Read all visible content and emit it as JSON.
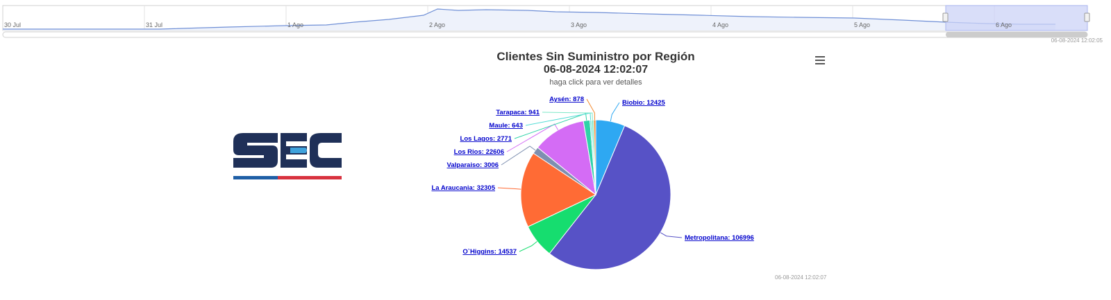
{
  "navigator": {
    "ticks": [
      "30 Jul",
      "31 Jul",
      "1 Ago",
      "2 Ago",
      "3 Ago",
      "4 Ago",
      "5 Ago",
      "6 Ago"
    ],
    "timestamp": "06-08-2024 12:02:05",
    "colors": {
      "line": "#6f8fd6",
      "fill": "#eef2fb",
      "selection": "#ccd3f7"
    }
  },
  "logo": {
    "text": "SEC",
    "colors": {
      "letters": "#1f3058",
      "accent": "#3fa2dc",
      "stripe_blue": "#1f5fa6",
      "stripe_red": "#d8323f"
    }
  },
  "chart": {
    "title": "Clientes Sin Suministro por Región",
    "datetime": "06-08-2024 12:02:07",
    "subtitle": "haga click para ver detalles",
    "footer": "06-08-2024 12:02:07",
    "menu_icon": "hamburger-menu-icon"
  },
  "chart_data": {
    "type": "pie",
    "title": "Clientes Sin Suministro por Región",
    "series": [
      {
        "name": "",
        "slices": [
          {
            "label": "Biobio",
            "value": 12425,
            "text": "Biobio: 12425",
            "color": "#2ea8f2"
          },
          {
            "label": "Metropolitana",
            "value": 106996,
            "text": "Metropolitana: 106996",
            "color": "#5752c6"
          },
          {
            "label": "O`Higgins",
            "value": 14537,
            "text": "O`Higgins: 14537",
            "color": "#16dd6f"
          },
          {
            "label": "La Araucania",
            "value": 32305,
            "text": "La Araucania: 32305",
            "color": "#ff6b35"
          },
          {
            "label": "Valparaiso",
            "value": 3006,
            "text": "Valparaiso: 3006",
            "color": "#7e8fb0"
          },
          {
            "label": "Los Rios",
            "value": 22606,
            "text": "Los Rios: 22606",
            "color": "#d46cf5"
          },
          {
            "label": "Los Lagos",
            "value": 2771,
            "text": "Los Lagos: 2771",
            "color": "#2ed3a8"
          },
          {
            "label": "Maule",
            "value": 643,
            "text": "Maule: 643",
            "color": "#4fdcd5"
          },
          {
            "label": "Tarapaca",
            "value": 941,
            "text": "Tarapaca: 941",
            "color": "#7ee8c8"
          },
          {
            "label": "Aysén",
            "value": 878,
            "text": "Aysén: 878",
            "color": "#f28a2e"
          }
        ]
      }
    ]
  }
}
